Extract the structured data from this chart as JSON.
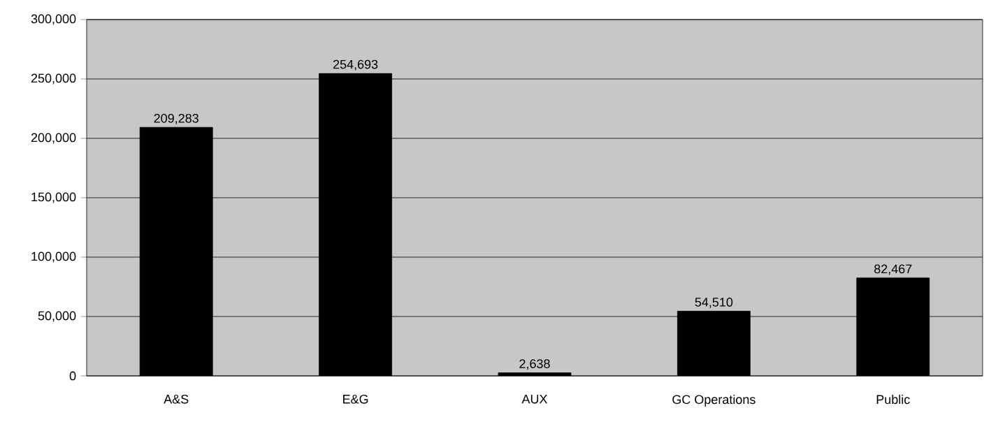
{
  "chart_data": {
    "type": "bar",
    "categories": [
      "A&S",
      "E&G",
      "AUX",
      "GC Operations",
      "Public"
    ],
    "values": [
      209283,
      254693,
      2638,
      54510,
      82467
    ],
    "value_labels": [
      "209,283",
      "254,693",
      "2,638",
      "54,510",
      "82,467"
    ],
    "color": "#000000",
    "ylim": [
      0,
      300000
    ],
    "yticks": [
      {
        "value": 0,
        "label": "0"
      },
      {
        "value": 50000,
        "label": "50,000"
      },
      {
        "value": 100000,
        "label": "100,000"
      },
      {
        "value": 150000,
        "label": "150,000"
      },
      {
        "value": 200000,
        "label": "200,000"
      },
      {
        "value": 250000,
        "label": "250,000"
      },
      {
        "value": 300000,
        "label": "300,000"
      }
    ],
    "grid": "y"
  }
}
